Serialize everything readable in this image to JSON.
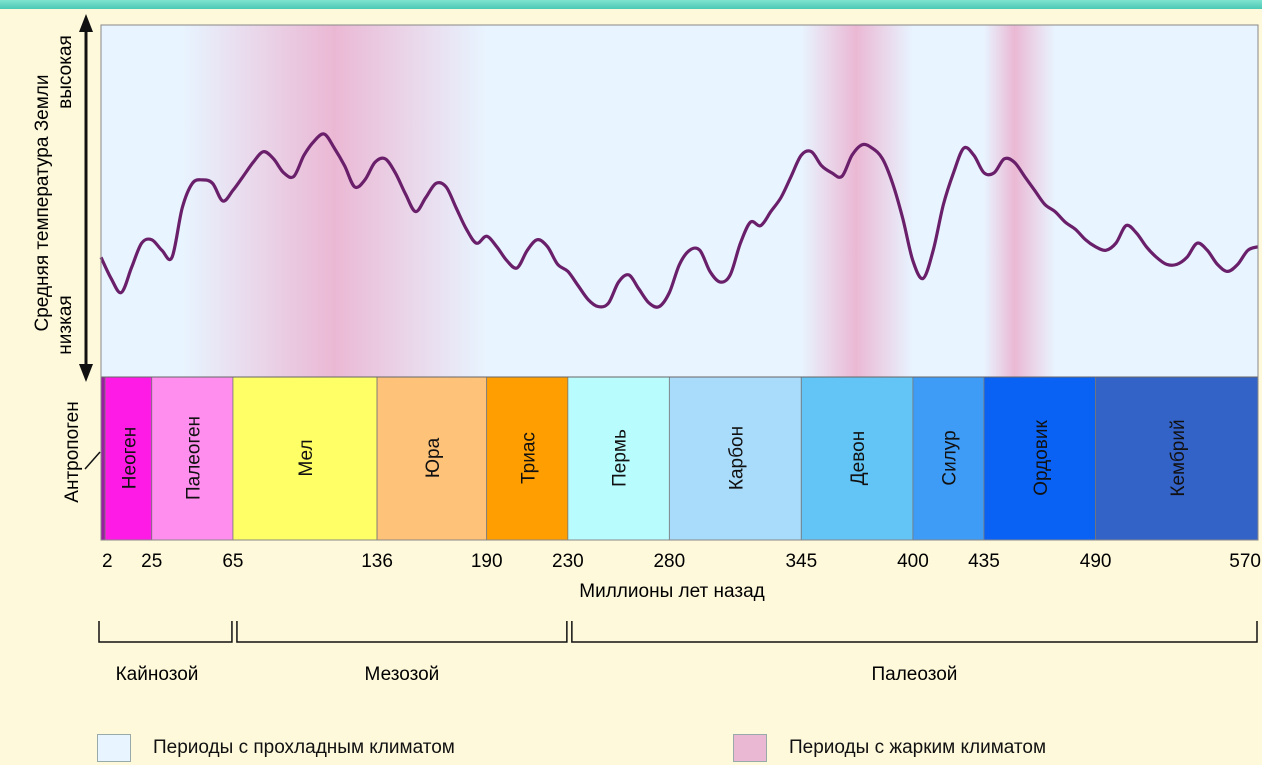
{
  "axis": {
    "y_label": "Средняя температура Земли",
    "y_high": "высокая",
    "y_low": "низкая",
    "x_label": "Миллионы лет назад",
    "x_ticks": [
      2,
      25,
      65,
      136,
      190,
      230,
      280,
      345,
      400,
      435,
      490,
      570
    ],
    "x_range": [
      0,
      570
    ]
  },
  "periods": [
    {
      "name": "Антропоген",
      "from": 0,
      "to": 2,
      "color": "#9A1FA0"
    },
    {
      "name": "Неоген",
      "from": 2,
      "to": 25,
      "color": "#FF1BE6"
    },
    {
      "name": "Палеоген",
      "from": 25,
      "to": 65,
      "color": "#FF8EEF"
    },
    {
      "name": "Мел",
      "from": 65,
      "to": 136,
      "color": "#FFFF66"
    },
    {
      "name": "Юра",
      "from": 136,
      "to": 190,
      "color": "#FFC279"
    },
    {
      "name": "Триас",
      "from": 190,
      "to": 230,
      "color": "#FF9E00"
    },
    {
      "name": "Пермь",
      "from": 230,
      "to": 280,
      "color": "#B8FCFE"
    },
    {
      "name": "Карбон",
      "from": 280,
      "to": 345,
      "color": "#A9DBFA"
    },
    {
      "name": "Девон",
      "from": 345,
      "to": 400,
      "color": "#63C4F6"
    },
    {
      "name": "Силур",
      "from": 400,
      "to": 435,
      "color": "#3F9CF6"
    },
    {
      "name": "Ордовик",
      "from": 435,
      "to": 490,
      "color": "#0A62F5"
    },
    {
      "name": "Кембрий",
      "from": 490,
      "to": 570,
      "color": "#3463C8"
    }
  ],
  "eras": [
    {
      "name": "Кайнозой",
      "from": 0,
      "to": 65
    },
    {
      "name": "Мезозой",
      "from": 65,
      "to": 230
    },
    {
      "name": "Палеозой",
      "from": 230,
      "to": 570
    }
  ],
  "hot_periods": [
    {
      "from": 40,
      "center": 115,
      "to": 190
    },
    {
      "from": 345,
      "center": 372,
      "to": 400
    },
    {
      "from": 435,
      "center": 450,
      "to": 470
    }
  ],
  "temperature": {
    "scale": [
      0,
      100
    ],
    "points": [
      [
        0,
        34
      ],
      [
        5,
        28
      ],
      [
        10,
        24
      ],
      [
        15,
        31
      ],
      [
        20,
        38
      ],
      [
        25,
        39
      ],
      [
        30,
        36
      ],
      [
        35,
        34
      ],
      [
        40,
        48
      ],
      [
        45,
        55
      ],
      [
        50,
        56
      ],
      [
        55,
        55
      ],
      [
        60,
        50
      ],
      [
        65,
        53
      ],
      [
        70,
        57
      ],
      [
        75,
        61
      ],
      [
        80,
        64
      ],
      [
        85,
        62
      ],
      [
        90,
        58
      ],
      [
        95,
        57
      ],
      [
        100,
        63
      ],
      [
        105,
        67
      ],
      [
        110,
        69
      ],
      [
        115,
        65
      ],
      [
        120,
        60
      ],
      [
        125,
        54
      ],
      [
        130,
        56
      ],
      [
        135,
        61
      ],
      [
        140,
        62
      ],
      [
        145,
        58
      ],
      [
        150,
        52
      ],
      [
        155,
        47
      ],
      [
        160,
        51
      ],
      [
        165,
        55
      ],
      [
        170,
        54
      ],
      [
        175,
        48
      ],
      [
        180,
        42
      ],
      [
        185,
        38
      ],
      [
        190,
        40
      ],
      [
        195,
        37
      ],
      [
        200,
        33
      ],
      [
        205,
        31
      ],
      [
        210,
        36
      ],
      [
        215,
        39
      ],
      [
        220,
        37
      ],
      [
        225,
        32
      ],
      [
        230,
        30
      ],
      [
        235,
        26
      ],
      [
        240,
        22
      ],
      [
        245,
        20
      ],
      [
        250,
        21
      ],
      [
        255,
        27
      ],
      [
        260,
        29
      ],
      [
        265,
        25
      ],
      [
        270,
        21
      ],
      [
        275,
        20
      ],
      [
        280,
        24
      ],
      [
        285,
        32
      ],
      [
        290,
        36
      ],
      [
        295,
        36
      ],
      [
        300,
        30
      ],
      [
        305,
        27
      ],
      [
        310,
        29
      ],
      [
        315,
        38
      ],
      [
        320,
        44
      ],
      [
        325,
        43
      ],
      [
        330,
        47
      ],
      [
        335,
        51
      ],
      [
        340,
        57
      ],
      [
        345,
        63
      ],
      [
        350,
        64
      ],
      [
        355,
        60
      ],
      [
        360,
        58
      ],
      [
        365,
        57
      ],
      [
        370,
        63
      ],
      [
        375,
        66
      ],
      [
        380,
        65
      ],
      [
        385,
        62
      ],
      [
        390,
        55
      ],
      [
        395,
        45
      ],
      [
        400,
        33
      ],
      [
        405,
        28
      ],
      [
        410,
        36
      ],
      [
        415,
        49
      ],
      [
        420,
        58
      ],
      [
        425,
        65
      ],
      [
        430,
        63
      ],
      [
        435,
        58
      ],
      [
        440,
        58
      ],
      [
        445,
        62
      ],
      [
        450,
        61
      ],
      [
        455,
        57
      ],
      [
        460,
        53
      ],
      [
        465,
        49
      ],
      [
        470,
        47
      ],
      [
        475,
        44
      ],
      [
        480,
        42
      ],
      [
        485,
        39
      ],
      [
        490,
        37
      ],
      [
        495,
        36
      ],
      [
        500,
        38
      ],
      [
        505,
        43
      ],
      [
        510,
        41
      ],
      [
        515,
        37
      ],
      [
        520,
        34
      ],
      [
        525,
        32
      ],
      [
        530,
        32
      ],
      [
        535,
        34
      ],
      [
        540,
        38
      ],
      [
        545,
        36
      ],
      [
        550,
        32
      ],
      [
        555,
        30
      ],
      [
        560,
        32
      ],
      [
        565,
        36
      ],
      [
        570,
        37
      ]
    ]
  },
  "legend": {
    "cool_label": "Периоды с прохладным климатом",
    "hot_label": "Периоды с жарким климатом",
    "cool_color": "#E8F4FF",
    "hot_color": "#EBB8D4"
  },
  "colors": {
    "curve": "#6A1F6A",
    "background": "#FEF9DB",
    "plot_cool": "#E8F4FF",
    "plot_hot": "#EBB8D4"
  }
}
